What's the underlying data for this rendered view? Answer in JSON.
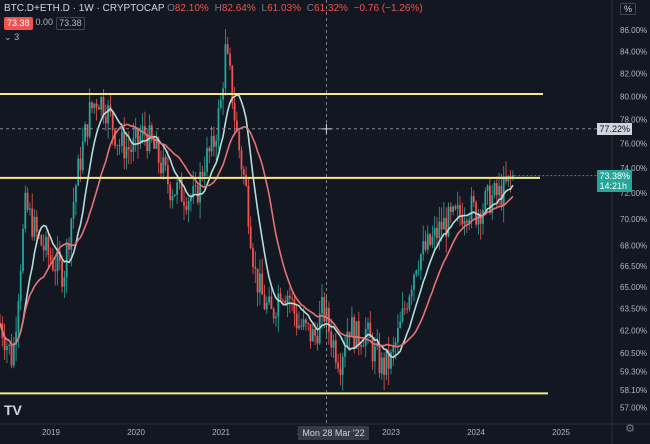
{
  "header": {
    "symbol": "BTC.D+ETH.D · 1W · CRYPTOCAP",
    "o_label": "O",
    "o_value": "82.10%",
    "h_label": "H",
    "h_value": "82.64%",
    "l_label": "L",
    "l_value": "61.03%",
    "c_label": "C",
    "c_value": "61.32%",
    "change": "−0.76 (−1.26%)",
    "sell_price": "73.38",
    "spread": "0.00",
    "buy_price": "73.38",
    "collapse_count": "3",
    "unit": "%",
    "logo": "TV"
  },
  "colors": {
    "up": "#26a69a",
    "down": "#ef5350",
    "level": "#f5e88a",
    "ma_fast": "#b2dfdb",
    "ma_slow": "#e57373",
    "background": "#131722"
  },
  "icons": {
    "settings": "gear-icon",
    "logo": "tradingview-logo-icon"
  },
  "last_price_label": "73.38%",
  "last_price_time": "14:21h",
  "crosshair": {
    "y_label": "77.22%",
    "x_label": "Mon 28 Mar '22",
    "y_value": 77.22,
    "x_value": 2022.24
  },
  "chart_data": {
    "type": "candlestick",
    "title": "",
    "xlabel": "",
    "ylabel": "",
    "xlim": [
      2018.4,
      2025.6
    ],
    "ylim": [
      56.0,
      87.5
    ],
    "y_scale": "log",
    "grid": false,
    "x_ticks": [
      "2019",
      "2020",
      "2021",
      "2022",
      "2023",
      "2024",
      "2025"
    ],
    "x_tick_values": [
      2019.0,
      2020.0,
      2021.0,
      2022.0,
      2023.0,
      2024.0,
      2025.0
    ],
    "y_ticks": [
      "86.00%",
      "84.00%",
      "82.00%",
      "80.00%",
      "78.00%",
      "76.00%",
      "74.00%",
      "72.00%",
      "70.00%",
      "68.00%",
      "66.50%",
      "65.00%",
      "63.50%",
      "62.00%",
      "60.50%",
      "59.30%",
      "58.10%",
      "57.00%"
    ],
    "y_tick_values": [
      86.0,
      84.0,
      82.0,
      80.0,
      78.0,
      76.0,
      74.0,
      72.0,
      70.0,
      68.0,
      66.5,
      65.0,
      63.5,
      62.0,
      60.5,
      59.3,
      58.1,
      57.0
    ],
    "horizontal_levels": [
      80.2,
      73.2,
      57.9
    ],
    "series": [
      {
        "x": [
          2018.4,
          2018.55,
          2018.7,
          2018.85,
          2019.0,
          2019.15,
          2019.3,
          2019.45,
          2019.55,
          2019.65,
          2019.8,
          2019.95,
          2020.1,
          2020.25,
          2020.4,
          2020.55,
          2020.7,
          2020.8,
          2020.9,
          2021.0,
          2021.05,
          2021.12,
          2021.18,
          2021.25,
          2021.3,
          2021.4,
          2021.5,
          2021.6,
          2021.7,
          2021.8,
          2021.9,
          2022.0,
          2022.1,
          2022.2,
          2022.3,
          2022.4,
          2022.5,
          2022.6,
          2022.7,
          2022.8,
          2022.9,
          2023.0,
          2023.1,
          2023.2,
          2023.3,
          2023.45,
          2023.6,
          2023.75,
          2023.9,
          2024.0,
          2024.15,
          2024.3,
          2024.45
        ],
        "y": [
          62.5,
          60.0,
          71.0,
          68.5,
          67.0,
          66.0,
          73.0,
          78.5,
          80.0,
          79.0,
          76.0,
          75.5,
          77.0,
          75.0,
          72.5,
          72.0,
          71.5,
          74.5,
          75.5,
          79.5,
          84.0,
          81.0,
          77.0,
          74.0,
          72.0,
          66.0,
          64.0,
          63.0,
          65.0,
          64.5,
          62.5,
          62.0,
          61.5,
          63.5,
          61.5,
          60.0,
          62.5,
          61.5,
          62.0,
          60.5,
          59.5,
          60.0,
          62.0,
          64.5,
          67.0,
          68.0,
          69.5,
          70.0,
          71.0,
          70.5,
          71.5,
          72.0,
          73.38
        ]
      }
    ]
  }
}
